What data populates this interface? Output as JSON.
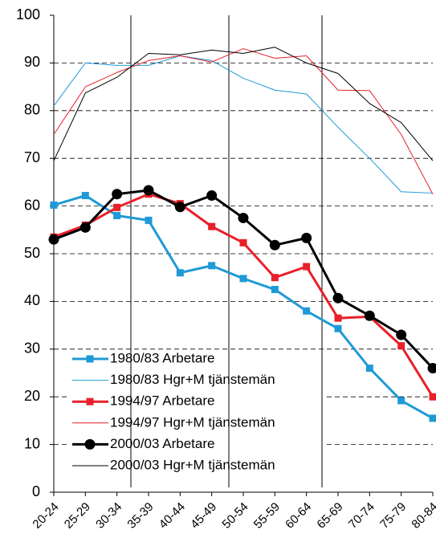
{
  "chart_data": {
    "type": "line",
    "categories": [
      "20-24",
      "25-29",
      "30-34",
      "35-39",
      "40-44",
      "45-49",
      "50-54",
      "55-59",
      "60-64",
      "65-69",
      "70-74",
      "75-79",
      "80-84"
    ],
    "ylim": [
      0,
      100
    ],
    "yticks": [
      0,
      10,
      20,
      30,
      40,
      50,
      60,
      70,
      80,
      90,
      100
    ],
    "grid": true,
    "legend": "lower left",
    "series": [
      {
        "name": "1980/83 Arbetare",
        "color": "#1f9ad6",
        "marker": "square",
        "line_width": 3,
        "values": [
          60.2,
          62.2,
          58,
          57,
          46,
          47.5,
          44.8,
          42.5,
          38,
          34.3,
          26,
          19.2,
          15.5
        ]
      },
      {
        "name": "1980/83 Hgr+M tjänstemän",
        "color": "#1f9ad6",
        "marker": null,
        "line_width": 1,
        "values": [
          81,
          90,
          89.5,
          89.5,
          91.5,
          90.5,
          86.8,
          84.3,
          83.5,
          76.5,
          70,
          63,
          62.7
        ]
      },
      {
        "name": "1994/97 Arbetare",
        "color": "#e8202a",
        "marker": "square",
        "line_width": 3,
        "values": [
          53.5,
          56,
          59.7,
          62.5,
          60.5,
          55.7,
          52.3,
          45,
          47.3,
          36.5,
          36.8,
          30.7,
          20
        ]
      },
      {
        "name": "1994/97 Hgr+M tjänstemän",
        "color": "#e8202a",
        "marker": null,
        "line_width": 1,
        "values": [
          75,
          85,
          88,
          90.5,
          91.5,
          90.2,
          93,
          91,
          91.5,
          84.3,
          84.2,
          75,
          62.5
        ]
      },
      {
        "name": "2000/03 Arbetare",
        "color": "#000000",
        "marker": "circle",
        "line_width": 3,
        "values": [
          53,
          55.5,
          62.5,
          63.3,
          59.8,
          62.2,
          57.5,
          51.8,
          53.3,
          40.7,
          37,
          33,
          26
        ]
      },
      {
        "name": "2000/03 Hgr+M tjänstemän",
        "color": "#000000",
        "marker": null,
        "line_width": 1,
        "values": [
          69.5,
          83.7,
          87,
          92,
          91.7,
          92.7,
          92,
          93.3,
          90,
          87.8,
          81.5,
          77.5,
          69.5
        ]
      }
    ]
  }
}
